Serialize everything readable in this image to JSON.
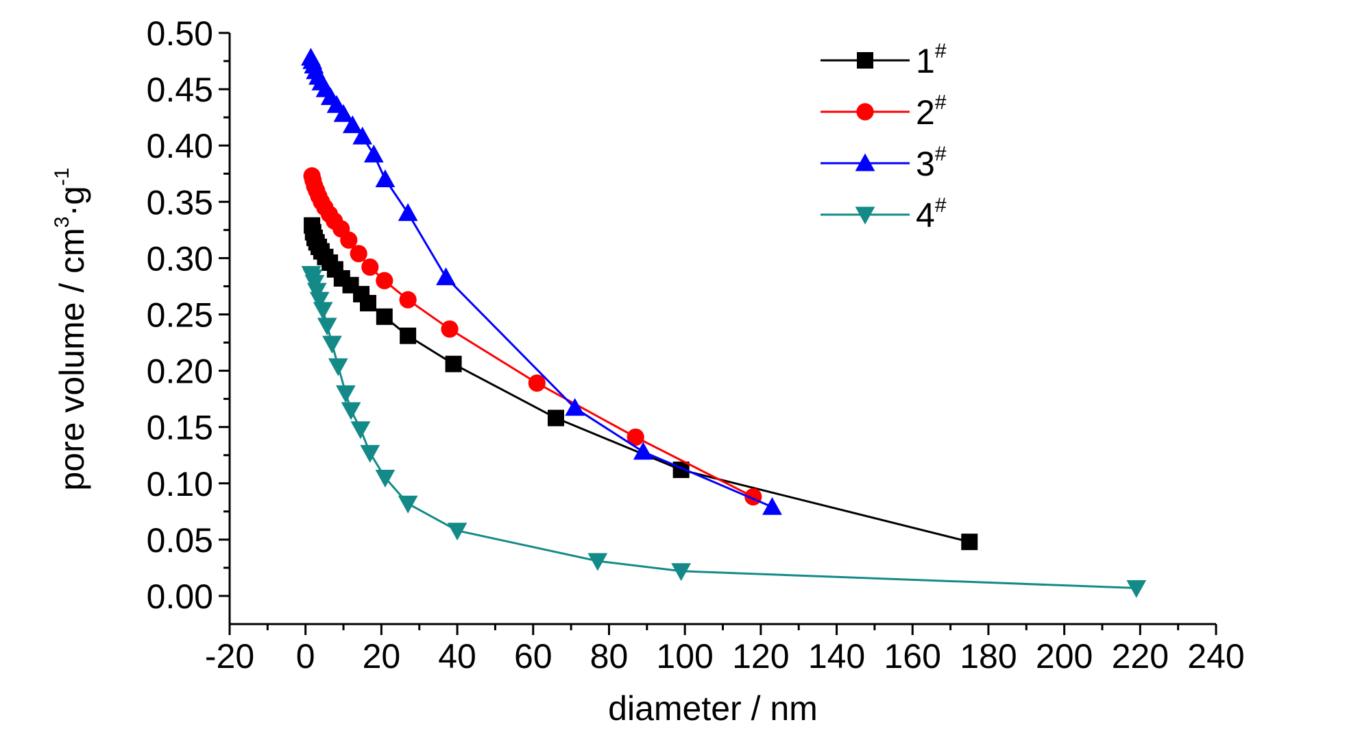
{
  "chart_data": {
    "type": "line",
    "xlabel": "diameter / nm",
    "ylabel": {
      "base": "pore volume / cm",
      "sup1": "3",
      "mid": "·g",
      "sup2": "-1"
    },
    "xlim": [
      -20,
      240
    ],
    "ylim": [
      -0.025,
      0.5
    ],
    "xticks": [
      -20,
      0,
      20,
      40,
      60,
      80,
      100,
      120,
      140,
      160,
      180,
      200,
      220,
      240
    ],
    "yticks": [
      0.0,
      0.05,
      0.1,
      0.15,
      0.2,
      0.25,
      0.3,
      0.35,
      0.4,
      0.45,
      0.5
    ],
    "legend_position": "top-right",
    "series": [
      {
        "name": "1",
        "sup": "#",
        "color": "#000000",
        "marker": "square",
        "x": [
          1.7,
          2.0,
          2.4,
          2.9,
          3.5,
          4.2,
          5.2,
          6.4,
          7.8,
          9.6,
          11.9,
          14.7,
          16.5,
          20.8,
          27.0,
          39.0,
          66.0,
          99.0,
          175.0
        ],
        "y": [
          0.329,
          0.323,
          0.318,
          0.314,
          0.31,
          0.306,
          0.301,
          0.296,
          0.29,
          0.282,
          0.276,
          0.268,
          0.26,
          0.248,
          0.231,
          0.206,
          0.158,
          0.112,
          0.048
        ]
      },
      {
        "name": "2",
        "sup": "#",
        "color": "#ff0000",
        "marker": "circle",
        "x": [
          1.7,
          2.0,
          2.4,
          2.9,
          3.5,
          4.2,
          5.1,
          6.3,
          7.6,
          9.4,
          11.4,
          14.0,
          17.0,
          20.8,
          27.0,
          38.0,
          61.0,
          87.0,
          118.0
        ],
        "y": [
          0.373,
          0.369,
          0.364,
          0.36,
          0.355,
          0.35,
          0.345,
          0.339,
          0.333,
          0.326,
          0.316,
          0.304,
          0.292,
          0.28,
          0.263,
          0.237,
          0.189,
          0.141,
          0.088
        ]
      },
      {
        "name": "3",
        "sup": "#",
        "color": "#0000ff",
        "marker": "triangle-up",
        "x": [
          1.4,
          1.8,
          2.2,
          2.7,
          3.4,
          4.2,
          5.3,
          6.6,
          8.2,
          10.0,
          12.4,
          15.0,
          18.0,
          21.0,
          27.0,
          37.0,
          71.0,
          89.0,
          123.0
        ],
        "y": [
          0.478,
          0.475,
          0.471,
          0.466,
          0.461,
          0.456,
          0.45,
          0.443,
          0.436,
          0.428,
          0.418,
          0.408,
          0.392,
          0.37,
          0.34,
          0.283,
          0.167,
          0.128,
          0.079
        ]
      },
      {
        "name": "4",
        "sup": "#",
        "color": "#138a87",
        "marker": "triangle-down",
        "x": [
          1.5,
          1.9,
          2.4,
          3.0,
          3.7,
          4.6,
          5.7,
          7.0,
          8.6,
          10.6,
          12.0,
          14.5,
          17.0,
          21.0,
          27.0,
          40.0,
          77.0,
          99.0,
          219.0
        ],
        "y": [
          0.286,
          0.283,
          0.278,
          0.271,
          0.263,
          0.254,
          0.24,
          0.224,
          0.204,
          0.18,
          0.165,
          0.148,
          0.127,
          0.105,
          0.082,
          0.058,
          0.031,
          0.022,
          0.007
        ]
      }
    ]
  }
}
